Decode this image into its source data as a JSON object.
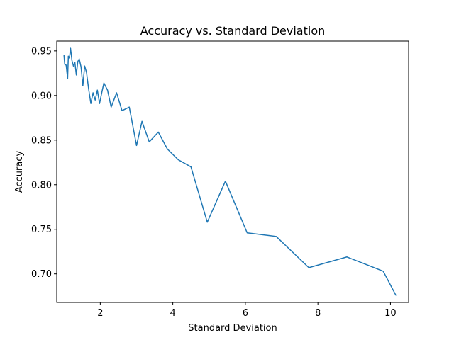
{
  "chart_data": {
    "type": "line",
    "title": "Accuracy vs. Standard Deviation",
    "xlabel": "Standard Deviation",
    "ylabel": "Accuracy",
    "xlim": [
      0.8,
      10.5
    ],
    "ylim": [
      0.668,
      0.961
    ],
    "x_ticks": [
      2,
      4,
      6,
      8,
      10
    ],
    "x_tick_labels": [
      "2",
      "4",
      "6",
      "8",
      "10"
    ],
    "y_ticks": [
      0.7,
      0.75,
      0.8,
      0.85,
      0.9,
      0.95
    ],
    "y_tick_labels": [
      "0.70",
      "0.75",
      "0.80",
      "0.85",
      "0.90",
      "0.95"
    ],
    "grid": false,
    "series": [
      {
        "color": "#1f77b4",
        "x": [
          1.0,
          1.02,
          1.06,
          1.1,
          1.12,
          1.15,
          1.18,
          1.22,
          1.26,
          1.3,
          1.34,
          1.38,
          1.42,
          1.47,
          1.52,
          1.57,
          1.62,
          1.68,
          1.74,
          1.8,
          1.86,
          1.92,
          1.98,
          2.04,
          2.1,
          2.2,
          2.3,
          2.45,
          2.6,
          2.8,
          3.0,
          3.15,
          3.35,
          3.6,
          3.85,
          4.15,
          4.5,
          4.95,
          5.45,
          6.05,
          6.85,
          7.75,
          8.8,
          9.8,
          10.15
        ],
        "y": [
          0.945,
          0.935,
          0.934,
          0.919,
          0.944,
          0.942,
          0.953,
          0.939,
          0.933,
          0.937,
          0.923,
          0.938,
          0.941,
          0.932,
          0.911,
          0.933,
          0.926,
          0.907,
          0.891,
          0.903,
          0.895,
          0.906,
          0.891,
          0.903,
          0.914,
          0.906,
          0.887,
          0.903,
          0.883,
          0.887,
          0.844,
          0.871,
          0.848,
          0.859,
          0.84,
          0.828,
          0.82,
          0.758,
          0.804,
          0.746,
          0.742,
          0.707,
          0.719,
          0.703,
          0.676
        ]
      }
    ]
  }
}
